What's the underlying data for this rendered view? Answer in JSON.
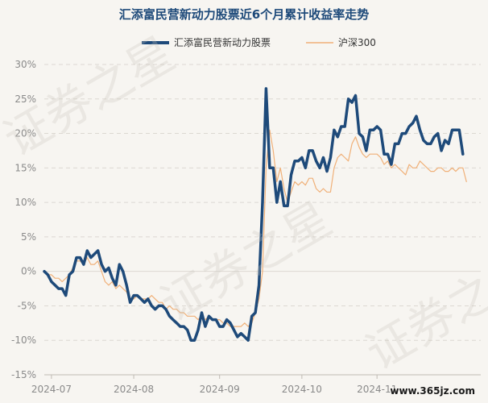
{
  "chart_data": {
    "type": "line",
    "title": "汇添富民营新动力股票近6个月累计收益率走势",
    "legend_position": "top",
    "grid": true,
    "ylim": [
      -15,
      30
    ],
    "yticks": [
      "-15%",
      "-10%",
      "-5%",
      "0%",
      "5%",
      "10%",
      "15%",
      "20%",
      "25%",
      "30%"
    ],
    "xticks": [
      "2024-07",
      "2024-08",
      "2024-09",
      "2024-10",
      "2024-11"
    ],
    "xlim": [
      0,
      122
    ],
    "tick_positions": [
      2,
      25,
      49,
      72,
      93
    ],
    "series": [
      {
        "name": "汇添富民营新动力股票",
        "color": "#1e4a7a",
        "values": [
          0,
          -0.5,
          -1.5,
          -2,
          -2.5,
          -2.5,
          -3.5,
          -0.5,
          0,
          2,
          2,
          1,
          3,
          2,
          2.5,
          3,
          1,
          0,
          0.5,
          -1,
          -2,
          1,
          0,
          -2,
          -4.5,
          -3.5,
          -3.5,
          -4,
          -4.5,
          -4,
          -5,
          -5.5,
          -5,
          -5,
          -5.5,
          -6.5,
          -7,
          -7.5,
          -8,
          -8,
          -8.5,
          -10,
          -10,
          -8.5,
          -6,
          -8,
          -6.5,
          -7,
          -7,
          -8,
          -8,
          -7,
          -7.5,
          -8.5,
          -9.5,
          -9,
          -9.5,
          -10,
          -6.5,
          -6,
          -2,
          10,
          26.5,
          15,
          15,
          10,
          13,
          9.5,
          9.5,
          14,
          16,
          16,
          16.5,
          15,
          17.5,
          17.5,
          16,
          15,
          16.5,
          14.5,
          16.5,
          20.5,
          19.5,
          21,
          21,
          25,
          24.5,
          25.5,
          20,
          19.5,
          17.5,
          20.5,
          20.5,
          21,
          20.5,
          17,
          17,
          15.5,
          18.5,
          18.5,
          20,
          20,
          21,
          21.5,
          22.5,
          20.5,
          19,
          18.5,
          18.5,
          19.5,
          20,
          17.5,
          19,
          18.5,
          20.5,
          20.5,
          20.5,
          17
        ],
        "line_width": 3.5
      },
      {
        "name": "沪深300",
        "color": "#f0b078",
        "values": [
          0,
          -0.5,
          -0.5,
          -1,
          -1,
          -1.5,
          -1,
          -0.5,
          0.5,
          1.5,
          1.5,
          1,
          2,
          1,
          1,
          1.5,
          0,
          -1.5,
          -2,
          -1.5,
          -2.5,
          -2,
          -2.5,
          -3,
          -4,
          -4,
          -3.5,
          -4,
          -4,
          -4,
          -3.5,
          -4,
          -4.5,
          -4.5,
          -5.5,
          -5,
          -5.5,
          -5.5,
          -6,
          -6,
          -6.5,
          -6.5,
          -6.5,
          -7,
          -6.5,
          -7,
          -6.5,
          -7,
          -7,
          -7,
          -7.5,
          -7.5,
          -8,
          -8,
          -8,
          -8,
          -7.5,
          -8,
          -7.5,
          -6,
          -4,
          0,
          15,
          20.5,
          17.5,
          13,
          15,
          12,
          10,
          11.5,
          13,
          12.5,
          13,
          12.5,
          13.5,
          13.5,
          12,
          11.5,
          12,
          11.5,
          11.5,
          15,
          16.5,
          17,
          16.5,
          16,
          18.5,
          19.5,
          18,
          17,
          16.5,
          17,
          17,
          17,
          16.5,
          15.5,
          16,
          15,
          15.5,
          15,
          14.5,
          14,
          15.5,
          15,
          15,
          16,
          15.5,
          15,
          14.5,
          14.5,
          15,
          15,
          14.5,
          14.5,
          15,
          14.5,
          15,
          15,
          13
        ],
        "line_width": 1.2
      }
    ]
  },
  "watermark": "证券之星",
  "site_label": "www.365jz.com"
}
